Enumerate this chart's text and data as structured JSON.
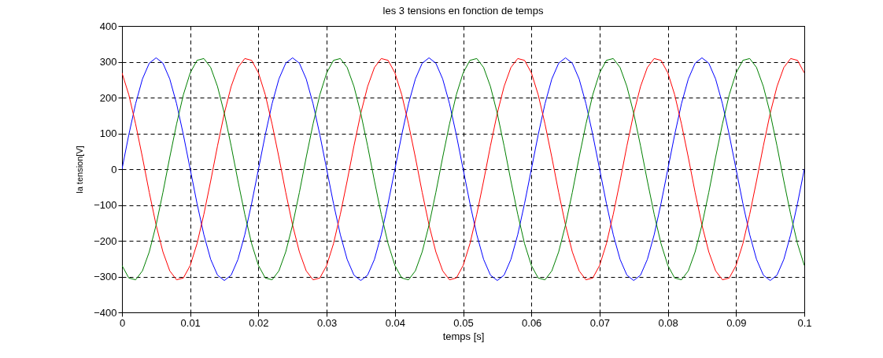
{
  "chart_data": {
    "type": "line",
    "title": "les 3 tensions en fonction de temps",
    "xlabel": "temps [s]",
    "ylabel": "la tension[V]",
    "x": [
      0,
      0.001,
      0.002,
      0.003,
      0.004,
      0.005,
      0.006,
      0.007,
      0.008,
      0.009,
      0.01,
      0.011,
      0.012,
      0.013,
      0.014,
      0.015,
      0.016,
      0.017,
      0.018,
      0.019,
      0.02,
      0.021,
      0.022,
      0.023,
      0.024,
      0.025,
      0.026,
      0.027,
      0.028,
      0.029,
      0.03,
      0.031,
      0.032,
      0.033,
      0.034,
      0.035,
      0.036,
      0.037,
      0.038,
      0.039,
      0.04,
      0.041,
      0.042,
      0.043,
      0.044,
      0.045,
      0.046,
      0.047,
      0.048,
      0.049,
      0.05,
      0.051,
      0.052,
      0.053,
      0.054,
      0.055,
      0.056,
      0.057,
      0.058,
      0.059,
      0.06,
      0.061,
      0.062,
      0.063,
      0.064,
      0.065,
      0.066,
      0.067,
      0.068,
      0.069,
      0.07,
      0.071,
      0.072,
      0.073,
      0.074,
      0.075,
      0.076,
      0.077,
      0.078,
      0.079,
      0.08,
      0.081,
      0.082,
      0.083,
      0.084,
      0.085,
      0.086,
      0.087,
      0.088,
      0.089,
      0.09,
      0.091,
      0.092,
      0.093,
      0.094,
      0.095,
      0.096,
      0.097,
      0.098,
      0.099,
      0.1
    ],
    "series": [
      {
        "color": "#0000ff",
        "values": [
          0,
          96,
          183,
          252,
          296,
          311,
          296,
          252,
          183,
          96,
          0,
          -96,
          -183,
          -252,
          -296,
          -311,
          -296,
          -252,
          -183,
          -96,
          0,
          96,
          183,
          252,
          296,
          311,
          296,
          252,
          183,
          96,
          0,
          -96,
          -183,
          -252,
          -296,
          -311,
          -296,
          -252,
          -183,
          -96,
          0,
          96,
          183,
          252,
          296,
          311,
          296,
          252,
          183,
          96,
          0,
          -96,
          -183,
          -252,
          -296,
          -311,
          -296,
          -252,
          -183,
          -96,
          0,
          96,
          183,
          252,
          296,
          311,
          296,
          252,
          183,
          96,
          0,
          -96,
          -183,
          -252,
          -296,
          -311,
          -296,
          -252,
          -183,
          -96,
          0,
          96,
          183,
          252,
          296,
          311,
          296,
          252,
          183,
          96,
          0,
          -96,
          -183,
          -252,
          -296,
          -311,
          -296,
          -252,
          -183,
          -96,
          0
        ]
      },
      {
        "color": "#ff0000",
        "values": [
          269,
          208,
          126,
          33,
          -65,
          -156,
          -231,
          -284,
          -309,
          -304,
          -269,
          -208,
          -126,
          -33,
          65,
          156,
          231,
          284,
          309,
          304,
          269,
          208,
          126,
          33,
          -65,
          -156,
          -231,
          -284,
          -309,
          -304,
          -269,
          -208,
          -126,
          -33,
          65,
          156,
          231,
          284,
          309,
          304,
          269,
          208,
          126,
          33,
          -65,
          -156,
          -231,
          -284,
          -309,
          -304,
          -269,
          -208,
          -126,
          -33,
          65,
          156,
          231,
          284,
          309,
          304,
          269,
          208,
          126,
          33,
          -65,
          -156,
          -231,
          -284,
          -309,
          -304,
          -269,
          -208,
          -126,
          -33,
          65,
          156,
          231,
          284,
          309,
          304,
          269,
          208,
          126,
          33,
          -65,
          -156,
          -231,
          -284,
          -309,
          -304,
          -269,
          -208,
          -126,
          -33,
          65,
          156,
          231,
          284,
          309,
          304,
          269
        ]
      },
      {
        "color": "#008000",
        "values": [
          -269,
          -304,
          -309,
          -284,
          -231,
          -156,
          -65,
          33,
          126,
          208,
          269,
          304,
          309,
          284,
          231,
          156,
          65,
          -33,
          -126,
          -208,
          -269,
          -304,
          -309,
          -284,
          -231,
          -156,
          -65,
          33,
          126,
          208,
          269,
          304,
          309,
          284,
          231,
          156,
          65,
          -33,
          -126,
          -208,
          -269,
          -304,
          -309,
          -284,
          -231,
          -156,
          -65,
          33,
          126,
          208,
          269,
          304,
          309,
          284,
          231,
          156,
          65,
          -33,
          -126,
          -208,
          -269,
          -304,
          -309,
          -284,
          -231,
          -156,
          -65,
          33,
          126,
          208,
          269,
          304,
          309,
          284,
          231,
          156,
          65,
          -33,
          -126,
          -208,
          -269,
          -304,
          -309,
          -284,
          -231,
          -156,
          -65,
          33,
          126,
          208,
          269,
          304,
          309,
          284,
          231,
          156,
          65,
          -33,
          -126,
          -208,
          -269
        ]
      }
    ],
    "xlim": [
      0,
      0.1
    ],
    "xticks": [
      0,
      0.01,
      0.02,
      0.03,
      0.04,
      0.05,
      0.06,
      0.07,
      0.08,
      0.09,
      0.1
    ],
    "ylim": [
      -400,
      400
    ],
    "yticks": [
      -400,
      -300,
      -200,
      -100,
      0,
      100,
      200,
      300,
      400
    ],
    "grid": true,
    "marker": "none",
    "line_style": "solid"
  }
}
